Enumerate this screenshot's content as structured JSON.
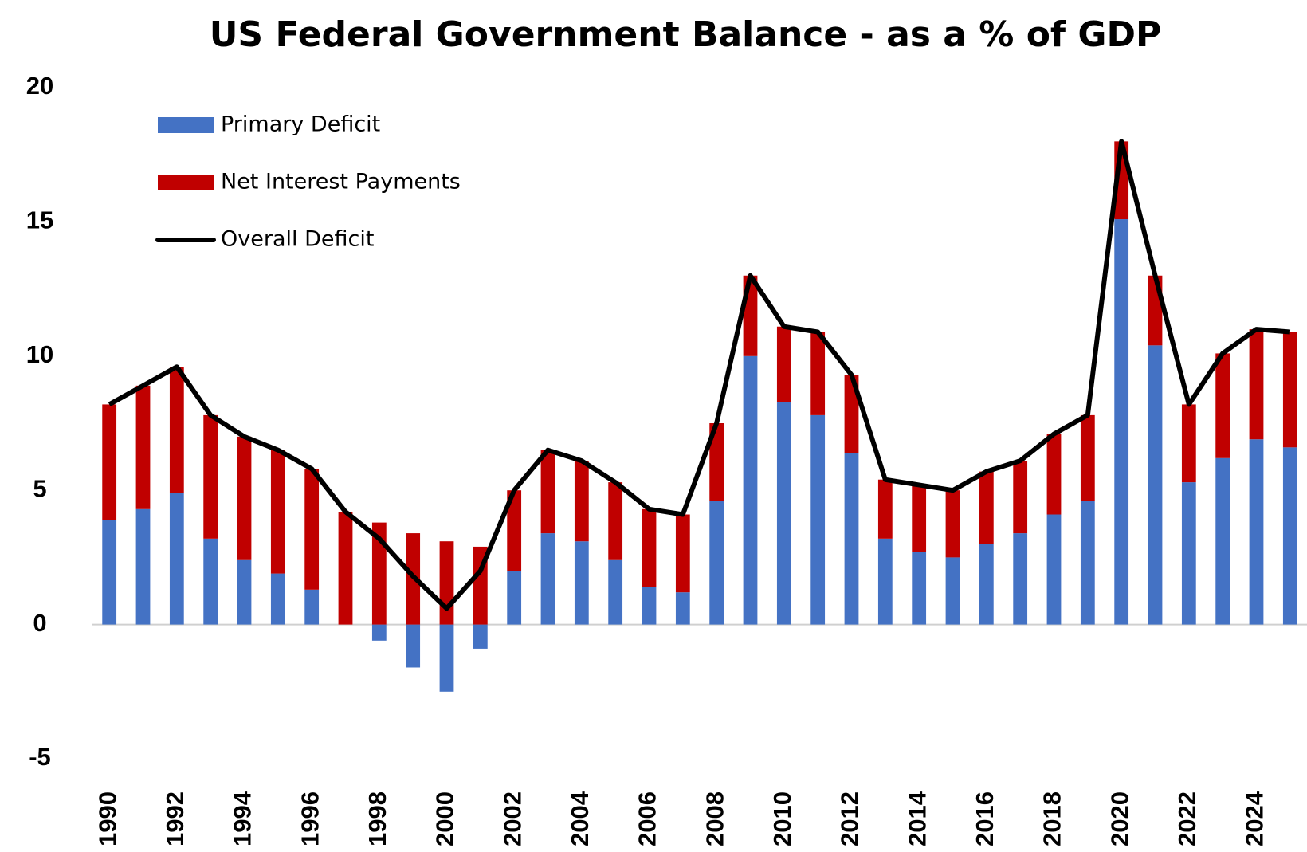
{
  "chart_data": {
    "type": "stacked-bar-line",
    "title": "US Federal Government Balance - as a % of GDP",
    "categories": [
      "1990",
      null,
      "1992",
      null,
      "1994",
      null,
      "1996",
      null,
      "1998",
      null,
      "2000",
      null,
      "2002",
      null,
      "2004",
      null,
      "2006",
      null,
      "2008",
      null,
      "2010",
      null,
      "2012",
      null,
      "2014",
      null,
      "2016",
      null,
      "2018",
      null,
      "2020",
      null,
      "2022",
      null,
      "2024",
      null
    ],
    "series": [
      {
        "name": "Primary Deficit",
        "kind": "bar",
        "color": "#4472c4",
        "values": [
          3.9,
          4.3,
          4.9,
          3.2,
          2.4,
          1.9,
          1.3,
          0.0,
          -0.6,
          -1.6,
          -2.5,
          -0.9,
          2.0,
          3.4,
          3.1,
          2.4,
          1.4,
          1.2,
          4.6,
          10.0,
          8.3,
          7.8,
          6.4,
          3.2,
          2.7,
          2.5,
          3.0,
          3.4,
          4.1,
          4.6,
          15.1,
          10.4,
          5.3,
          6.2,
          6.9,
          6.6
        ]
      },
      {
        "name": "Net Interest Payments",
        "kind": "bar",
        "color": "#c00000",
        "values": [
          4.3,
          4.6,
          4.7,
          4.6,
          4.6,
          4.6,
          4.5,
          4.2,
          3.8,
          3.4,
          3.1,
          2.9,
          3.0,
          3.1,
          3.0,
          2.9,
          2.9,
          2.9,
          2.9,
          3.0,
          2.8,
          3.1,
          2.9,
          2.2,
          2.5,
          2.5,
          2.7,
          2.7,
          3.0,
          3.2,
          2.9,
          2.6,
          2.9,
          3.9,
          4.1,
          4.3
        ]
      },
      {
        "name": "Overall Deficit",
        "kind": "line",
        "color": "#000000",
        "values": [
          8.2,
          8.9,
          9.6,
          7.8,
          7.0,
          6.5,
          5.8,
          4.2,
          3.2,
          1.8,
          0.6,
          2.0,
          5.0,
          6.5,
          6.1,
          5.3,
          4.3,
          4.1,
          7.5,
          13.0,
          11.1,
          10.9,
          9.3,
          5.4,
          5.2,
          5.0,
          5.7,
          6.1,
          7.1,
          7.8,
          18.0,
          13.0,
          8.2,
          10.1,
          11.0,
          10.9
        ]
      }
    ],
    "ylim": [
      -5,
      20
    ],
    "yticks": [
      -5,
      0,
      5,
      10,
      15,
      20
    ],
    "grid": false,
    "legend": "upper left"
  }
}
